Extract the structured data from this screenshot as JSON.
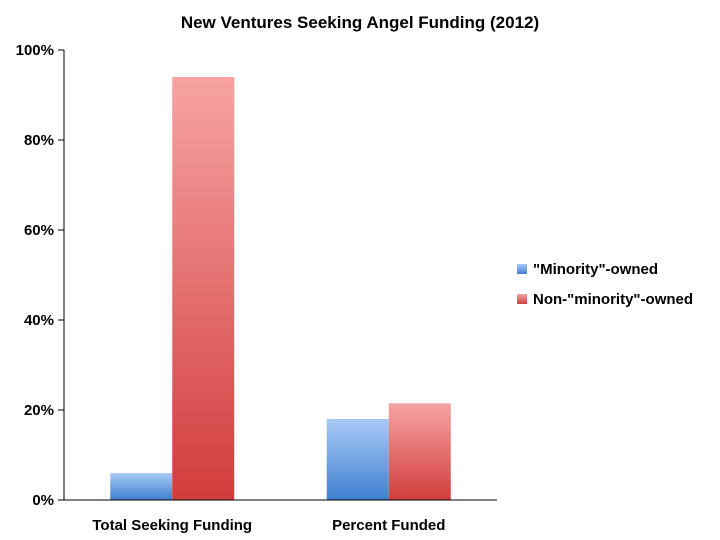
{
  "chart_data": {
    "type": "bar",
    "title": "New Ventures Seeking Angel Funding (2012)",
    "xlabel": "",
    "ylabel": "",
    "categories": [
      "Total Seeking Funding",
      "Percent Funded"
    ],
    "series": [
      {
        "name": "\"Minority\"-owned",
        "values": [
          6,
          18
        ],
        "color": "#4a86d4"
      },
      {
        "name": "Non-\"minority\"-owned",
        "values": [
          94,
          21.5
        ],
        "color": "#d94545"
      }
    ],
    "ylim": [
      0,
      100
    ],
    "yticks": [
      0,
      20,
      40,
      60,
      80,
      100
    ],
    "ytick_labels": [
      "0%",
      "20%",
      "40%",
      "60%",
      "80%",
      "100%"
    ],
    "grid": false,
    "legend_position": "right"
  }
}
